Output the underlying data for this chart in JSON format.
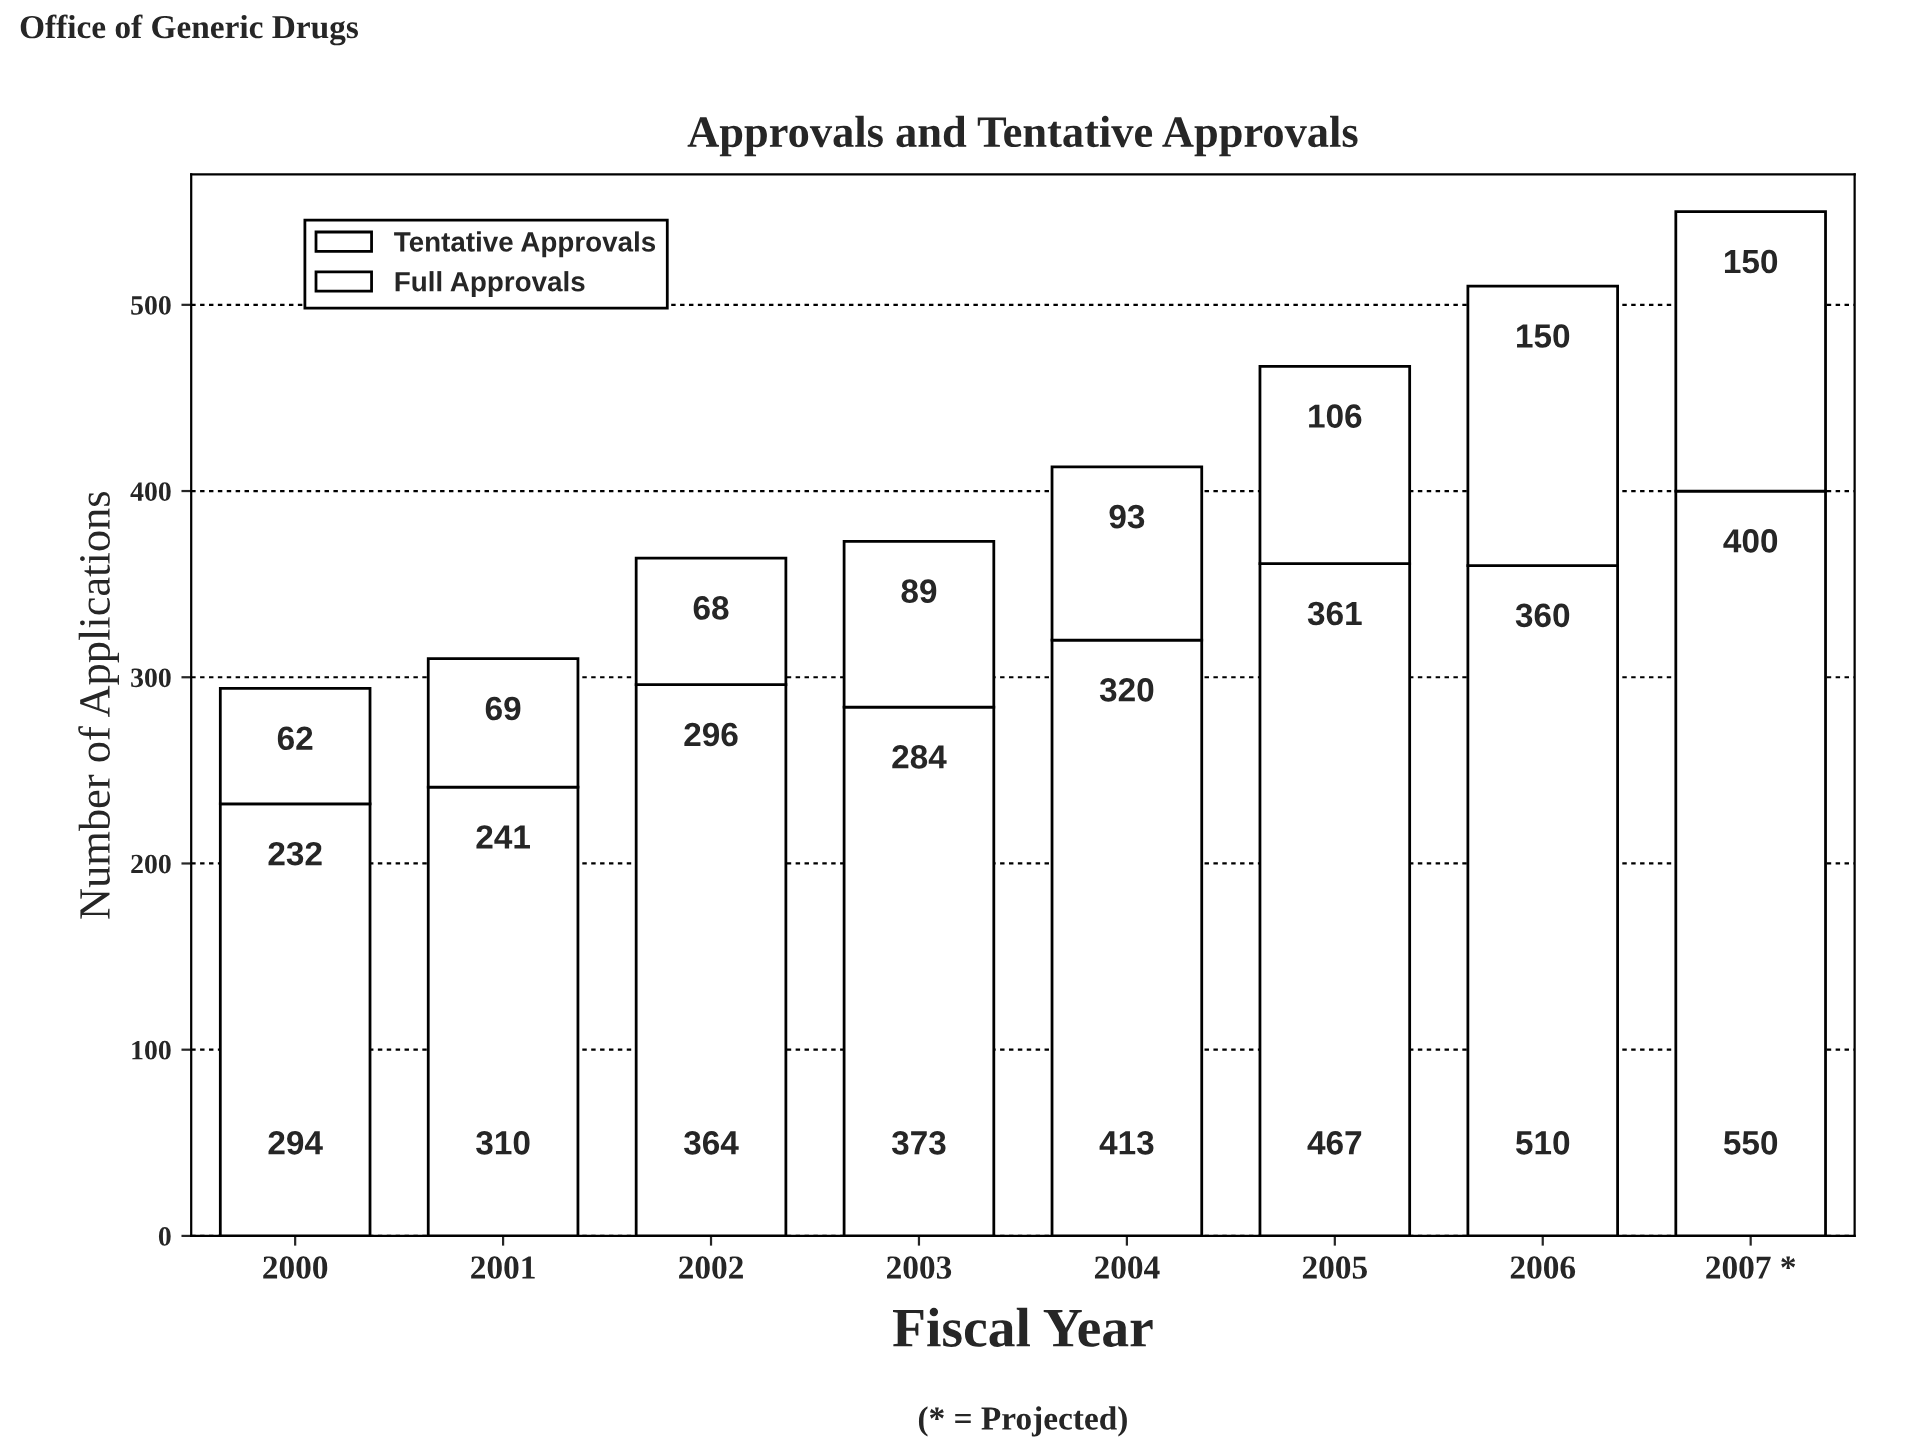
{
  "chart_data": {
    "type": "bar",
    "title": "Approvals and Tentative Approvals",
    "xlabel": "Fiscal Year",
    "ylabel": "Number of Applications",
    "categories": [
      "2000",
      "2001",
      "2002",
      "2003",
      "2004",
      "2005",
      "2006",
      "2007 *"
    ],
    "stacked": true,
    "series": [
      {
        "name": "Full Approvals",
        "color": "#ffffff",
        "values": [
          232,
          241,
          296,
          284,
          320,
          361,
          360,
          400
        ]
      },
      {
        "name": "Tentative Approvals",
        "color": "#ffffff",
        "values": [
          62,
          69,
          68,
          89,
          93,
          106,
          150,
          150
        ]
      }
    ],
    "totals": [
      "294",
      "310",
      "364",
      "373",
      "413",
      "467",
      "510",
      "550"
    ],
    "data_labels": true,
    "ylim": [
      0,
      570
    ],
    "yticks": [
      0,
      100,
      200,
      300,
      400,
      500
    ],
    "grid": "y",
    "legend": "top left",
    "annotations": [
      "Office of Generic Drugs",
      "(* = Projected)"
    ]
  }
}
